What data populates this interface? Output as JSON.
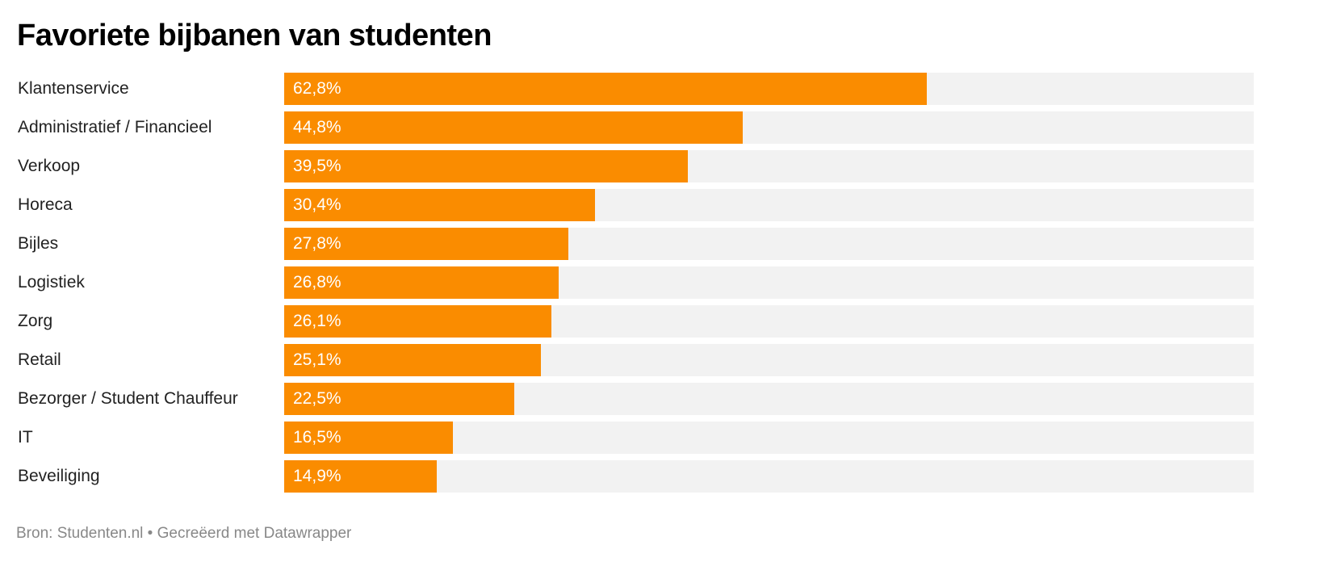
{
  "title": "Favoriete bijbanen van studenten",
  "footer": "Bron: Studenten.nl • Gecreëerd met Datawrapper",
  "colors": {
    "bar": "#fa8c00",
    "track": "#f2f2f2",
    "value_text": "#ffffff",
    "label_text": "#222222",
    "footer_text": "#888888"
  },
  "chart_data": {
    "type": "bar",
    "orientation": "horizontal",
    "title": "Favoriete bijbanen van studenten",
    "xlabel": "",
    "ylabel": "",
    "categories": [
      "Klantenservice",
      "Administratief / Financieel",
      "Verkoop",
      "Horeca",
      "Bijles",
      "Logistiek",
      "Zorg",
      "Retail",
      "Bezorger / Student Chauffeur",
      "IT",
      "Beveiliging"
    ],
    "values": [
      62.8,
      44.8,
      39.5,
      30.4,
      27.8,
      26.8,
      26.1,
      25.1,
      22.5,
      16.5,
      14.9
    ],
    "value_labels": [
      "62,8%",
      "44,8%",
      "39,5%",
      "30,4%",
      "27,8%",
      "26,8%",
      "26,1%",
      "25,1%",
      "22,5%",
      "16,5%",
      "14,9%"
    ],
    "unit": "%",
    "xlim": [
      0,
      94.8
    ],
    "grid": false,
    "legend": null,
    "source": "Studenten.nl"
  }
}
